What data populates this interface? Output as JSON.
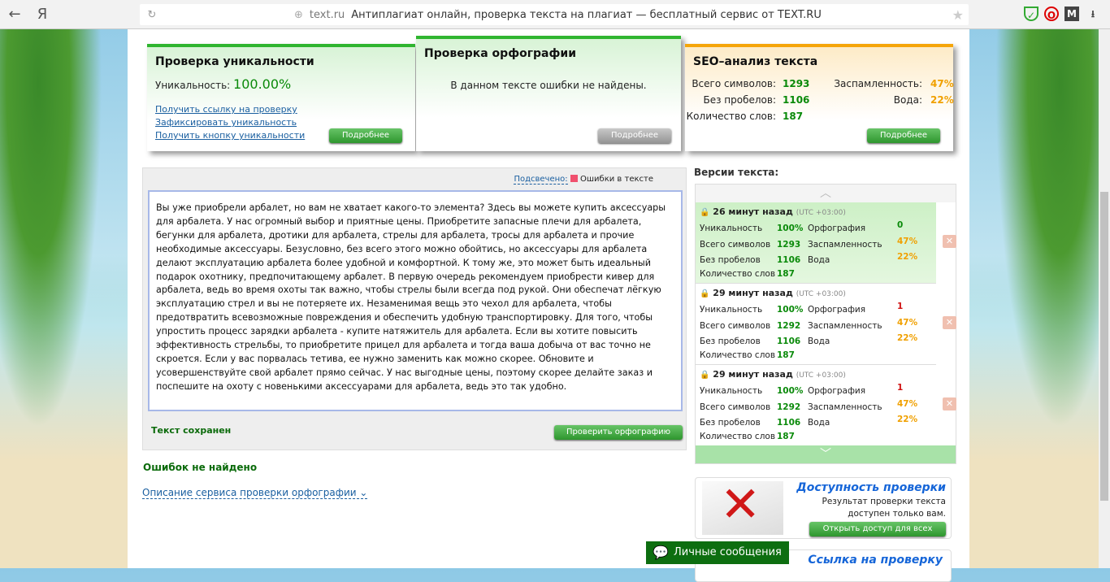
{
  "browser": {
    "back": "←",
    "yandex": "Я",
    "domain": "text.ru",
    "title": "Антиплагиат онлайн, проверка текста на плагиат — бесплатный сервис от TEXT.RU"
  },
  "uniq_card": {
    "title": "Проверка уникальности",
    "label": "Уникальность:",
    "value": "100.00%",
    "links": [
      "Получить ссылку на проверку",
      "Зафиксировать уникальность",
      "Получить кнопку уникальности"
    ],
    "button": "Подробнее"
  },
  "spell_card": {
    "title": "Проверка орфографии",
    "message": "В данном тексте ошибки не найдены.",
    "button": "Подробнее"
  },
  "seo_card": {
    "title": "SEO–анализ текста",
    "total_label": "Всего символов:",
    "total": "1293",
    "nospace_label": "Без пробелов:",
    "nospace": "1106",
    "words_label": "Количество слов:",
    "words": "187",
    "spam_label": "Заспамленность:",
    "spam": "47%",
    "water_label": "Вода:",
    "water": "22%",
    "button": "Подробнее"
  },
  "editor": {
    "highlight_link": "Подсвечено:",
    "legend": "Ошибки в тексте",
    "legend_color": "#f0506e",
    "text": "Вы уже приобрели арбалет, но вам не хватает какого-то элемента? Здесь вы можете купить аксессуары для арбалета. У нас огромный выбор и приятные цены. Приобретите запасные плечи для арбалета, бегунки для арбалета, дротики для арбалета, стрелы для арбалета, тросы для арбалета и прочие необходимые аксессуары. Безусловно, без всего этого можно обойтись, но аксессуары для арбалета делают эксплуатацию арбалета более удобной и комфортной. К тому же, это может быть идеальный подарок охотнику, предпочитающему арбалет. В первую очередь рекомендуем приобрести кивер для арбалета, ведь во время охоты так важно, чтобы стрелы были всегда под рукой. Они обеспечат лёгкую эксплуатацию стрел и вы не потеряете их. Незаменимая вещь это чехол для арбалета, чтобы предотвратить всевозможные повреждения и обеспечить удобную транспортировку. Для того, чтобы упростить процесс зарядки арбалета - купите натяжитель для арбалета. Если вы хотите повысить эффективность стрельбы, то приобретите прицел для арбалета и тогда ваша добыча от вас точно не скроется. Если у вас порвалась тетива, ее нужно заменить как можно скорее. Обновите и усовершенствуйте свой арбалет прямо сейчас. У нас выгодные цены, поэтому скорее делайте заказ и поспешите на охоту с новенькими аксессуарами для арбалета, ведь это так удобно.",
    "saved": "Текст сохранен",
    "check_button": "Проверить орфографию"
  },
  "result": "Ошибок не найдено",
  "description_link": "Описание сервиса проверки орфографии",
  "versions": {
    "title": "Версии текста:",
    "labels": {
      "uniq": "Уникальность",
      "total": "Всего символов",
      "nospace": "Без пробелов",
      "words": "Количество слов",
      "spell": "Орфография",
      "spam": "Заспамленность",
      "water": "Вода"
    },
    "items": [
      {
        "time": "26 минут назад",
        "tz": "(UTC +03:00)",
        "uniq": "100%",
        "total": "1293",
        "nospace": "1106",
        "words": "187",
        "spell": "0",
        "spam": "47%",
        "water": "22%",
        "active": true
      },
      {
        "time": "29 минут назад",
        "tz": "(UTC +03:00)",
        "uniq": "100%",
        "total": "1292",
        "nospace": "1106",
        "words": "187",
        "spell": "1",
        "spam": "47%",
        "water": "22%",
        "active": false
      },
      {
        "time": "29 минут назад",
        "tz": "(UTC +03:00)",
        "uniq": "100%",
        "total": "1292",
        "nospace": "1106",
        "words": "187",
        "spell": "1",
        "spam": "47%",
        "water": "22%",
        "active": false
      }
    ]
  },
  "access_promo": {
    "title": "Доступность проверки",
    "text": "Результат проверки текста доступен только вам.",
    "button": "Открыть доступ для всех"
  },
  "link_promo": {
    "title": "Ссылка на проверку"
  },
  "messages": "Личные сообщения"
}
